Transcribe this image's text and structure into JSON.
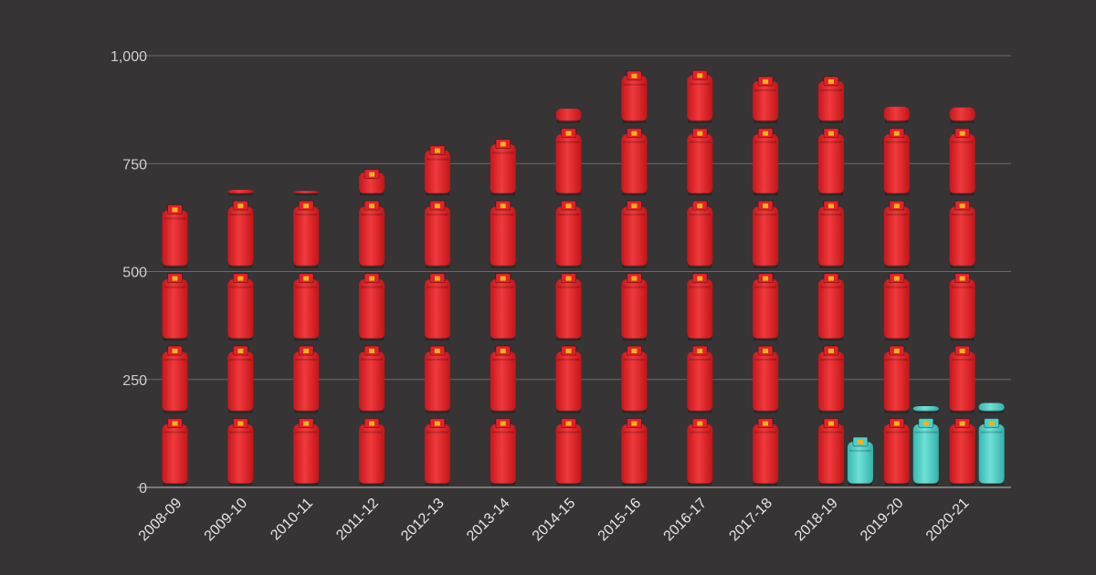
{
  "chart_data": {
    "type": "bar",
    "title": "",
    "xlabel": "",
    "ylabel": "",
    "ylim": [
      0,
      1000
    ],
    "yticks": [
      0,
      250,
      500,
      750,
      1000
    ],
    "ytick_labels": [
      "0",
      "250",
      "500",
      "750",
      "1,000"
    ],
    "grid": true,
    "legend": "none",
    "categories": [
      "2008-09",
      "2009-10",
      "2010-11",
      "2011-12",
      "2012-13",
      "2013-14",
      "2014-15",
      "2015-16",
      "2016-17",
      "2017-18",
      "2018-19",
      "2019-20",
      "2020-21"
    ],
    "series": [
      {
        "color": "#e32227",
        "icon": "gas-cylinder-icon",
        "values": [
          663,
          703,
          700,
          745,
          800,
          815,
          892,
          973,
          974,
          960,
          960,
          897,
          895
        ]
      },
      {
        "color": "#4ecdc4",
        "icon": "gas-cylinder-icon",
        "values": [
          null,
          null,
          null,
          null,
          null,
          null,
          null,
          null,
          null,
          null,
          125,
          202,
          210
        ]
      }
    ]
  }
}
